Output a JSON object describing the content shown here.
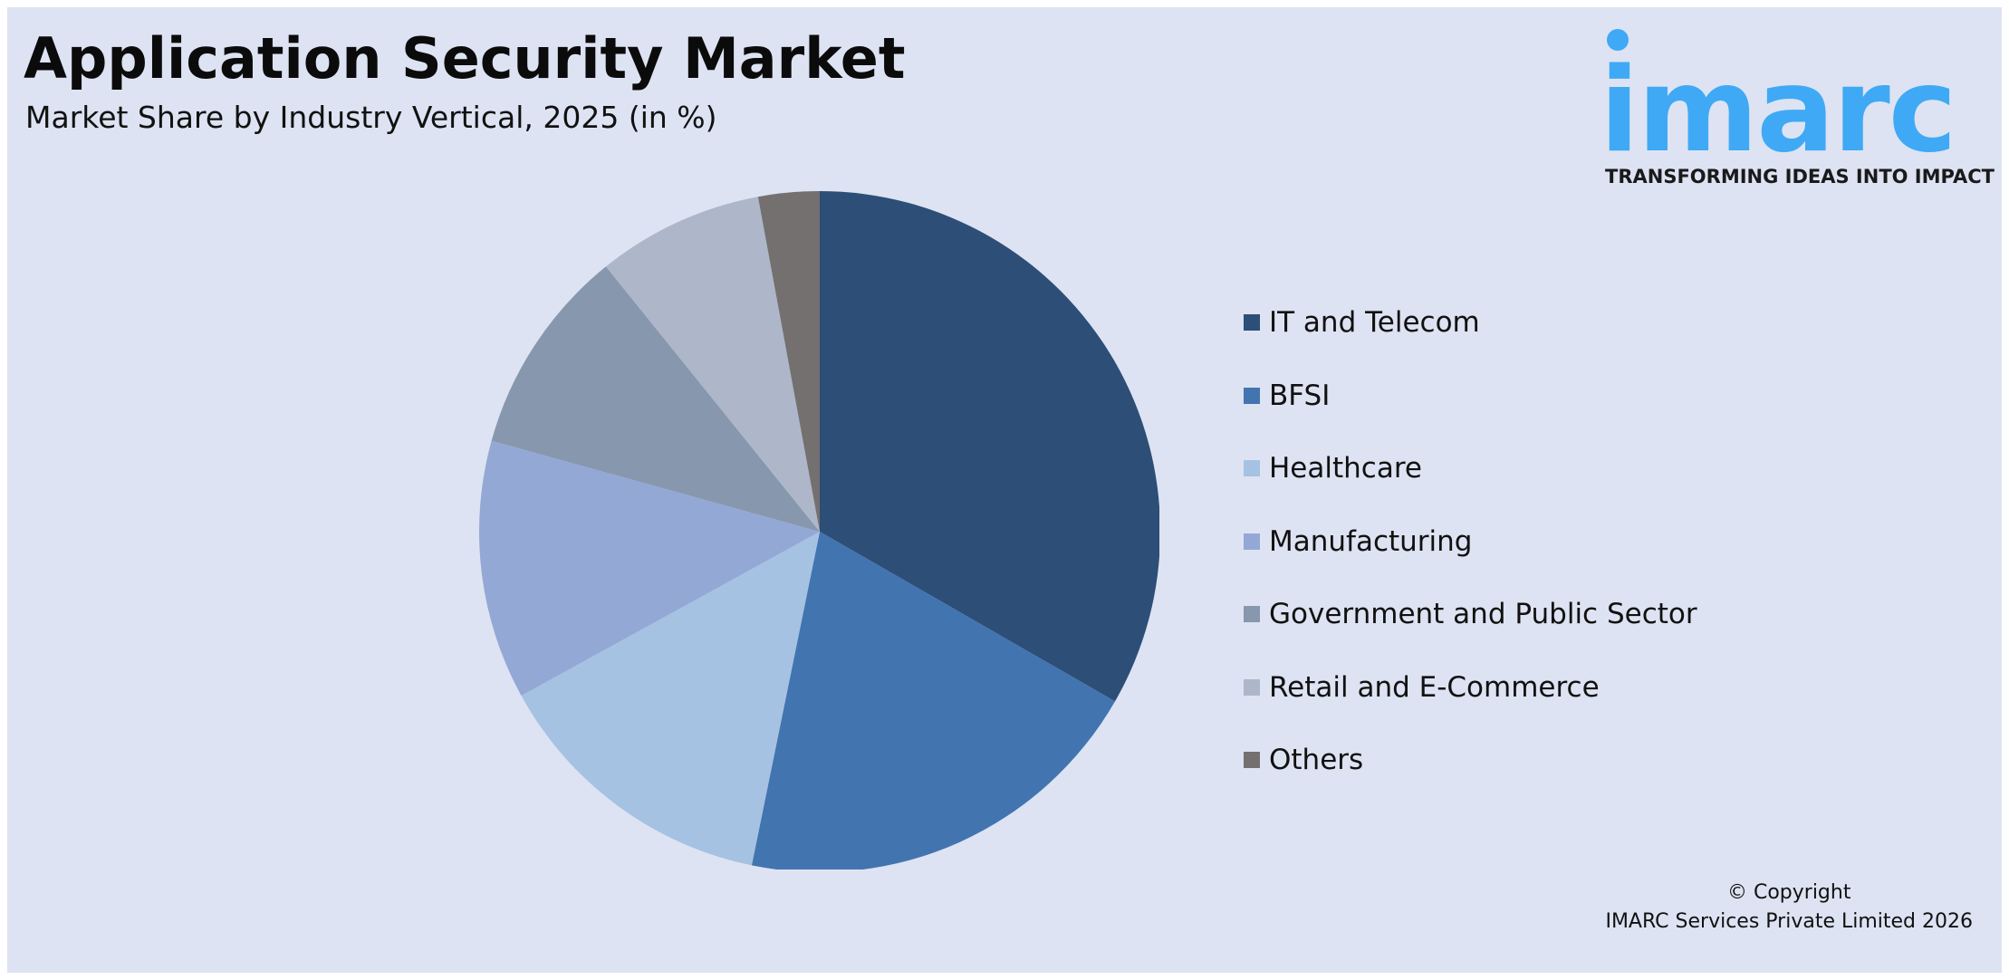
{
  "header": {
    "title": "Application Security Market",
    "subtitle": "Market Share by Industry Vertical, 2025 (in %)"
  },
  "logo": {
    "wordmark": "imarc",
    "tagline": "TRANSFORMING IDEAS INTO IMPACT",
    "color": "#3fa9f5"
  },
  "chart_data": {
    "type": "pie",
    "title": "Application Security Market",
    "subtitle": "Market Share by Industry Vertical, 2025 (in %)",
    "categories": [
      "IT and Telecom",
      "BFSI",
      "Healthcare",
      "Manufacturing",
      "Government and Public Sector",
      "Retail and E-Commerce",
      "Others"
    ],
    "values": [
      33.3,
      19.9,
      13.8,
      12.3,
      9.9,
      7.9,
      2.9
    ],
    "colors": [
      "#2d4e77",
      "#4274b0",
      "#a6c2e2",
      "#94a8d6",
      "#8797ad",
      "#adb7c9",
      "#747070"
    ],
    "start_angle_deg": 0,
    "direction": "clockwise",
    "legend_position": "right"
  },
  "footer": {
    "copyright_line1": "© Copyright",
    "copyright_line2": "IMARC Services Private Limited 2026"
  }
}
